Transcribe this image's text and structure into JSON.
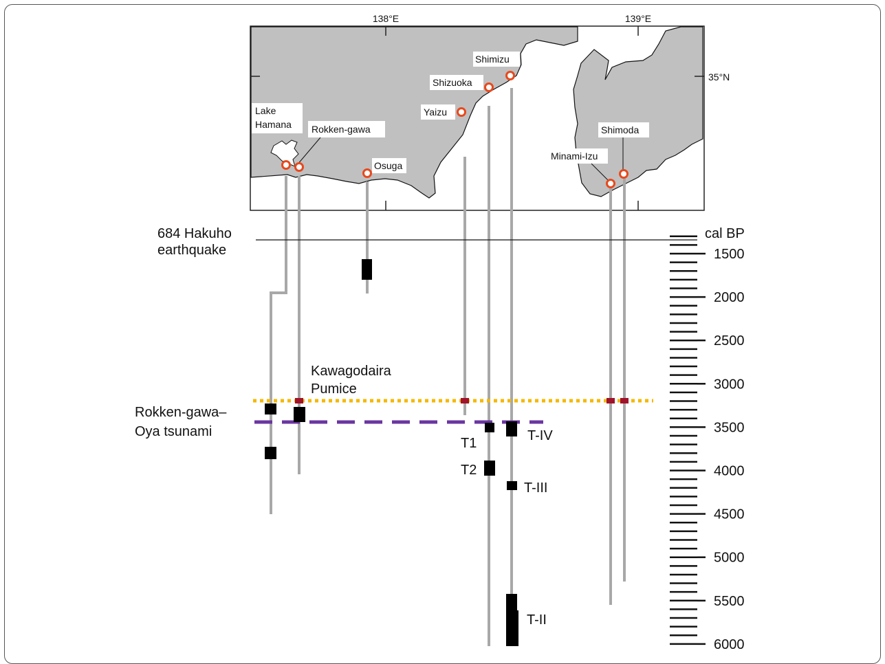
{
  "map": {
    "lon_labels": [
      "138°E",
      "139°E"
    ],
    "lat_label": "35°N",
    "sites": [
      {
        "name": "Lake Hamana"
      },
      {
        "name": "Rokken-gawa"
      },
      {
        "name": "Osuga"
      },
      {
        "name": "Yaizu"
      },
      {
        "name": "Shizuoka"
      },
      {
        "name": "Shimizu"
      },
      {
        "name": "Minami-Izu"
      },
      {
        "name": "Shimoda"
      }
    ]
  },
  "timeline": {
    "axis_title": "cal BP",
    "ticks": [
      "1500",
      "2000",
      "2500",
      "3000",
      "3500",
      "4000",
      "4500",
      "5000",
      "5500",
      "6000"
    ],
    "events": {
      "hakuho": "684 Hakuho earthquake",
      "pumice": "Kawagodaira Pumice",
      "tsunami": "Rokken-gawa–Oya tsunami"
    },
    "event_labels": {
      "t1": "T1",
      "t2": "T2",
      "t4": "T-IV",
      "t3": "T-III",
      "t2b": "T-II"
    }
  },
  "colors": {
    "land": "#c0c0c0",
    "site_marker": "#e8491d",
    "pumice_line": "#f5b800",
    "tsunami_line": "#6a35a0",
    "pumice_mark": "#a0132a",
    "column": "#a8a8a8",
    "event_box": "#000000"
  }
}
